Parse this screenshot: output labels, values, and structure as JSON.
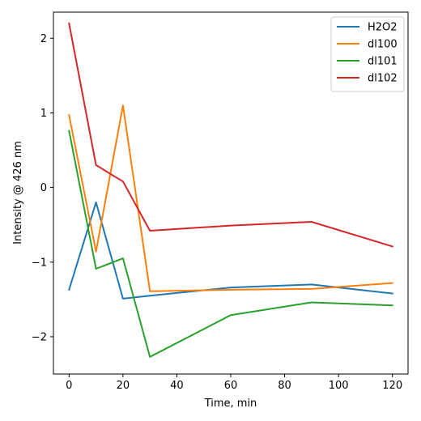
{
  "chart_data": {
    "type": "line",
    "title": "",
    "xlabel": "Time, min",
    "ylabel": "Intensity @ 426 nm",
    "x": [
      0,
      10,
      20,
      30,
      60,
      90,
      120
    ],
    "xlim": [
      -5.8,
      125.8
    ],
    "ylim": [
      -2.5,
      2.35
    ],
    "xticks": [
      0,
      20,
      40,
      60,
      80,
      100,
      120
    ],
    "xtick_labels": [
      "0",
      "20",
      "40",
      "60",
      "80",
      "100",
      "120"
    ],
    "yticks": [
      -2,
      -1,
      0,
      1,
      2
    ],
    "ytick_labels": [
      "−2",
      "−1",
      "0",
      "1",
      "2"
    ],
    "grid": false,
    "legend_position": "top-right",
    "series": [
      {
        "name": "H2O2",
        "color": "#1f77b4",
        "values": [
          -1.37,
          -0.2,
          -1.49,
          -1.45,
          -1.34,
          -1.3,
          -1.42
        ]
      },
      {
        "name": "dl100",
        "color": "#ff7f0e",
        "values": [
          0.97,
          -0.86,
          1.1,
          -1.39,
          -1.37,
          -1.36,
          -1.28
        ]
      },
      {
        "name": "dl101",
        "color": "#2ca02c",
        "values": [
          0.76,
          -1.09,
          -0.95,
          -2.27,
          -1.71,
          -1.54,
          -1.58
        ]
      },
      {
        "name": "dl102",
        "color": "#d62728",
        "values": [
          2.2,
          0.3,
          0.08,
          -0.58,
          -0.51,
          -0.46,
          -0.79
        ]
      }
    ]
  }
}
